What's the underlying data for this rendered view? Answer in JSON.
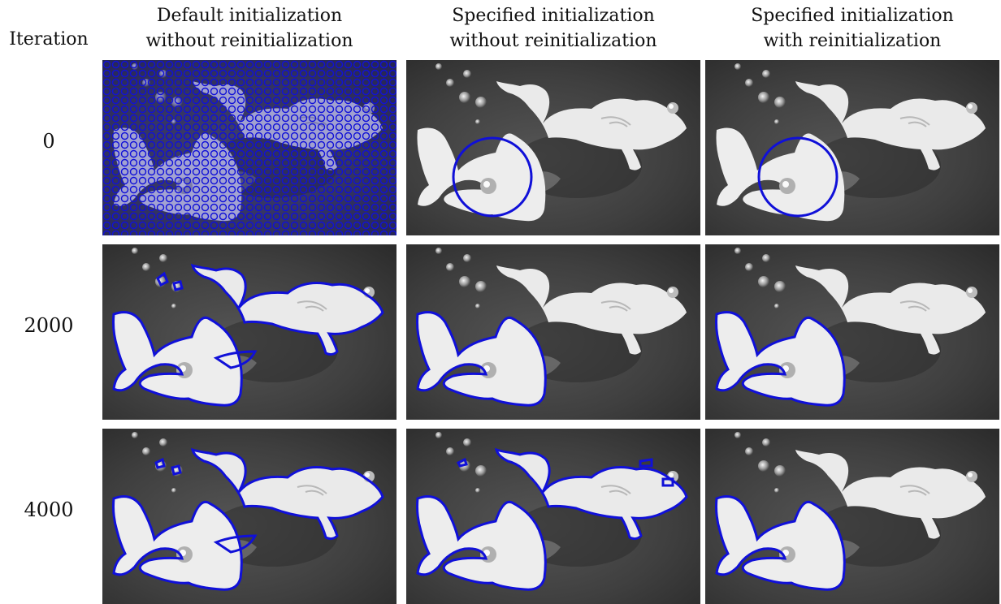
{
  "header": {
    "iteration_label": "Iteration",
    "columns": [
      {
        "line1": "Default initialization",
        "line2": "without reinitialization"
      },
      {
        "line1": "Specified initialization",
        "line2": "without reinitialization"
      },
      {
        "line1": "Specified initialization",
        "line2": "with reinitialization"
      }
    ]
  },
  "rows": [
    {
      "iteration": "0"
    },
    {
      "iteration": "2000"
    },
    {
      "iteration": "4000"
    }
  ],
  "colors": {
    "contour": "#1010d8",
    "background_dark": "#3a3a3a",
    "fish": "#ececec"
  }
}
